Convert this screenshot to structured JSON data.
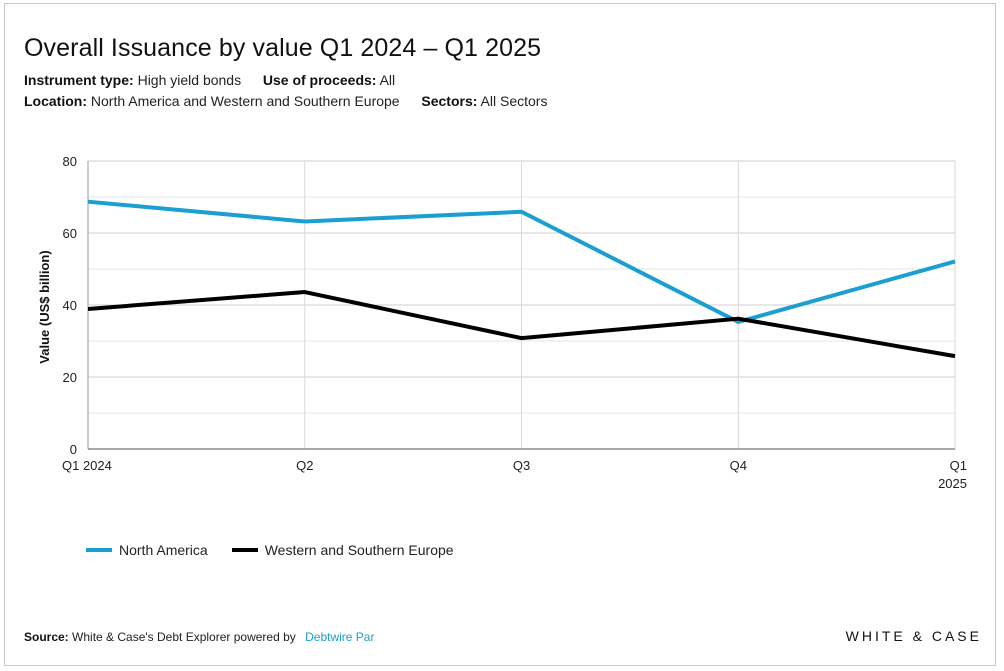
{
  "title": "Overall Issuance by value Q1 2024 – Q1 2025",
  "filters": {
    "instrument_label": "Instrument type:",
    "instrument_value": "High yield bonds",
    "proceeds_label": "Use of proceeds:",
    "proceeds_value": "All",
    "location_label": "Location:",
    "location_value": "North America and Western and Southern Europe",
    "sectors_label": "Sectors:",
    "sectors_value": "All Sectors"
  },
  "source": {
    "label": "Source:",
    "text": "White & Case's Debt Explorer powered by",
    "link": "Debtwire Par"
  },
  "brand": "WHITE & CASE",
  "colors": {
    "north_america": "#1a9fd0",
    "europe": "#000000",
    "grid": "#d9d9d9"
  },
  "chart_data": {
    "type": "line",
    "categories": [
      "Q1 2024",
      "Q2",
      "Q3",
      "Q4",
      "Q1 2025"
    ],
    "x_tick_labels": [
      [
        "Q1 2024"
      ],
      [
        "Q2"
      ],
      [
        "Q3"
      ],
      [
        "Q4"
      ],
      [
        "Q1",
        "2025"
      ]
    ],
    "ylabel": "Value (US$ billion)",
    "xlabel": "",
    "ylim": [
      0,
      80
    ],
    "yticks": [
      0,
      20,
      40,
      60,
      80
    ],
    "grid": true,
    "legend_position": "bottom-left",
    "series": [
      {
        "name": "North America",
        "color": "#1a9fd0",
        "values": [
          68.7,
          63.2,
          65.9,
          35.3,
          52.1
        ]
      },
      {
        "name": "Western and Southern Europe",
        "color": "#000000",
        "values": [
          38.9,
          43.6,
          30.8,
          36.2,
          25.8
        ]
      }
    ]
  }
}
